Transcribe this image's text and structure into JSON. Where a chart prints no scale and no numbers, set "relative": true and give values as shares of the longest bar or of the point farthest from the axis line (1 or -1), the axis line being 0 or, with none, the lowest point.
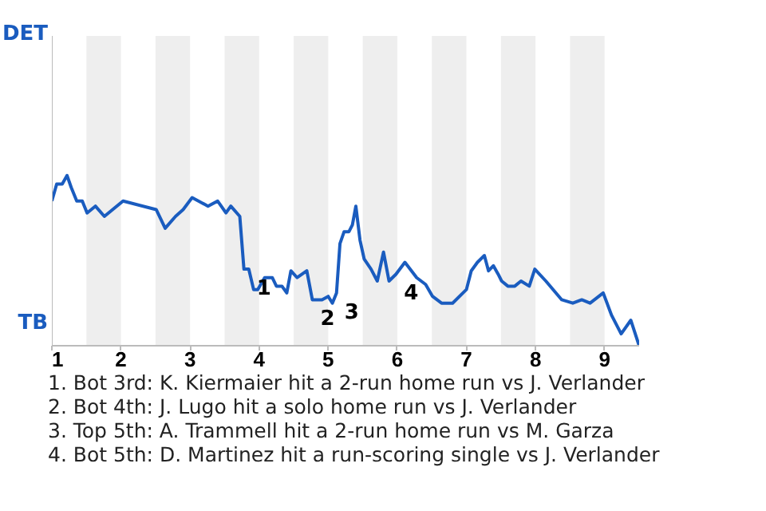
{
  "chart_data": {
    "type": "line",
    "relative": true,
    "x": [
      1.0,
      1.07,
      1.15,
      1.22,
      1.28,
      1.36,
      1.44,
      1.51,
      1.63,
      1.76,
      2.03,
      2.51,
      2.64,
      2.79,
      2.9,
      3.03,
      3.26,
      3.4,
      3.52,
      3.59,
      3.72,
      3.78,
      3.85,
      3.92,
      3.98,
      4.08,
      4.19,
      4.25,
      4.33,
      4.4,
      4.46,
      4.55,
      4.69,
      4.77,
      4.91,
      5.0,
      5.06,
      5.12,
      5.17,
      5.23,
      5.3,
      5.35,
      5.4,
      5.46,
      5.52,
      5.62,
      5.71,
      5.8,
      5.88,
      5.98,
      6.11,
      6.28,
      6.41,
      6.51,
      6.64,
      6.8,
      7.0,
      7.07,
      7.16,
      7.26,
      7.32,
      7.39,
      7.46,
      7.51,
      7.6,
      7.7,
      7.79,
      7.91,
      7.99,
      8.15,
      8.38,
      8.54,
      8.67,
      8.79,
      8.98,
      9.1,
      9.24,
      9.38,
      9.5
    ],
    "series": [
      {
        "color": "#1a5cbf",
        "values": [
          0.85,
          0.95,
          0.95,
          1,
          0.93,
          0.85,
          0.85,
          0.78,
          0.82,
          0.76,
          0.85,
          0.8,
          0.69,
          0.76,
          0.8,
          0.87,
          0.82,
          0.85,
          0.78,
          0.82,
          0.76,
          0.45,
          0.45,
          0.33,
          0.33,
          0.4,
          0.4,
          0.35,
          0.35,
          0.31,
          0.44,
          0.4,
          0.44,
          0.27,
          0.27,
          0.29,
          0.25,
          0.31,
          0.6,
          0.67,
          0.67,
          0.71,
          0.82,
          0.62,
          0.51,
          0.45,
          0.38,
          0.55,
          0.38,
          0.42,
          0.49,
          0.4,
          0.36,
          0.29,
          0.25,
          0.25,
          0.33,
          0.44,
          0.49,
          0.53,
          0.44,
          0.47,
          0.42,
          0.38,
          0.35,
          0.35,
          0.38,
          0.35,
          0.45,
          0.38,
          0.27,
          0.25,
          0.27,
          0.25,
          0.31,
          0.18,
          0.07,
          0.15,
          0
        ]
      }
    ],
    "xlim": [
      1,
      9.5
    ],
    "xticks": [
      1,
      2,
      3,
      4,
      5,
      6,
      7,
      8,
      9
    ],
    "bands": [
      {
        "axis": "x",
        "from": 1.5,
        "to": 2,
        "color": "#eeeeee"
      },
      {
        "axis": "x",
        "from": 2.5,
        "to": 3,
        "color": "#eeeeee"
      },
      {
        "axis": "x",
        "from": 3.5,
        "to": 4,
        "color": "#eeeeee"
      },
      {
        "axis": "x",
        "from": 4.5,
        "to": 5,
        "color": "#eeeeee"
      },
      {
        "axis": "x",
        "from": 5.5,
        "to": 6,
        "color": "#eeeeee"
      },
      {
        "axis": "x",
        "from": 6.5,
        "to": 7,
        "color": "#eeeeee"
      },
      {
        "axis": "x",
        "from": 7.5,
        "to": 8,
        "color": "#eeeeee"
      },
      {
        "axis": "x",
        "from": 8.5,
        "to": 9,
        "color": "#eeeeee"
      }
    ],
    "annotations": [
      "DET",
      "TB",
      {
        "text": "1",
        "x": 3.85,
        "y": 0.45
      },
      {
        "text": "2",
        "x": 4.77,
        "y": 0.27
      },
      {
        "text": "3",
        "x": 5.12,
        "y": 0.31
      },
      {
        "text": "4",
        "x": 5.98,
        "y": 0.42
      },
      "1. Bot 3rd: K. Kiermaier hit a 2-run home run vs J. Verlander",
      "2. Bot 4th: J. Lugo hit a solo home run vs J. Verlander",
      "3. Top 5th: A. Trammell hit a 2-run home run vs M. Garza",
      "4. Bot 5th: D. Martinez hit a run-scoring single vs J. Verlander"
    ]
  }
}
